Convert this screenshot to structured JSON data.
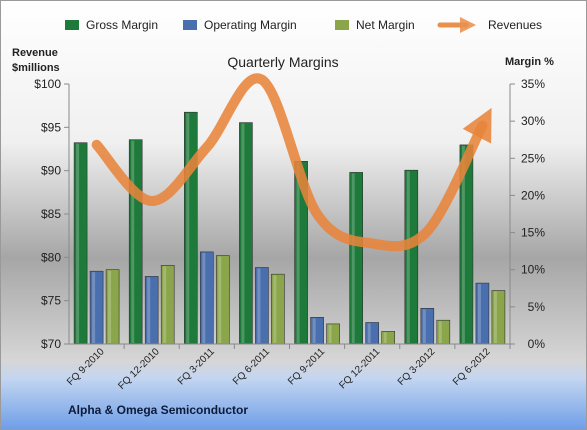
{
  "chart_data": {
    "type": "bar",
    "title": "Quarterly Margins",
    "footer": "Alpha & Omega Semiconductor",
    "left_axis": {
      "label_line1": "Revenue",
      "label_line2": "$millions",
      "min": 70,
      "max": 100,
      "step": 5,
      "ticks": [
        "$70",
        "$75",
        "$80",
        "$85",
        "$90",
        "$95",
        "$100"
      ]
    },
    "right_axis": {
      "label": "Margin %",
      "min": 0,
      "max": 35,
      "step": 5,
      "ticks": [
        "0%",
        "5%",
        "10%",
        "15%",
        "20%",
        "25%",
        "30%",
        "35%"
      ]
    },
    "categories": [
      "FQ 9-2010",
      "FQ 12-2010",
      "FQ 3-2011",
      "FQ 6-2011",
      "FQ 9-2011",
      "FQ 12-2011",
      "FQ 3-2012",
      "FQ 6-2012"
    ],
    "series": [
      {
        "name": "Gross Margin",
        "axis": "right",
        "color": "#1e7a3a",
        "values": [
          27.1,
          27.5,
          31.2,
          29.8,
          24.6,
          23.1,
          23.4,
          26.8
        ]
      },
      {
        "name": "Operating Margin",
        "axis": "right",
        "color": "#4a6fae",
        "values": [
          9.8,
          9.1,
          12.4,
          10.3,
          3.6,
          2.9,
          4.8,
          8.2
        ]
      },
      {
        "name": "Net Margin",
        "axis": "right",
        "color": "#8aa54a",
        "values": [
          10.0,
          10.6,
          11.9,
          9.4,
          2.7,
          1.7,
          3.2,
          7.2
        ]
      },
      {
        "name": "Revenues",
        "axis": "left",
        "color": "#e8843a",
        "values": [
          93.0,
          86.5,
          92.7,
          100.5,
          85.0,
          81.6,
          83.0,
          95.2
        ]
      }
    ],
    "legend_position": "top",
    "grid": false
  }
}
